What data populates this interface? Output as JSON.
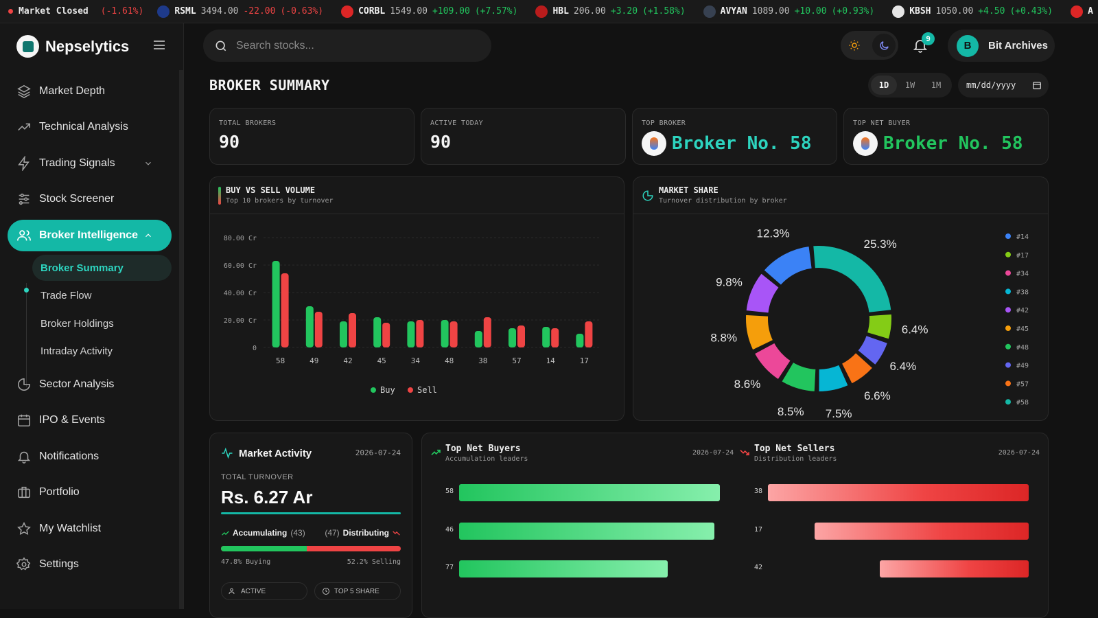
{
  "market_status": {
    "label": "Market Closed",
    "change": "(-1.61%)"
  },
  "ticker": [
    {
      "symbol": "RSML",
      "price": "3494.00",
      "change": "-22.00",
      "pct": "(-0.63%)",
      "dir": "dn",
      "logo_color": "#1e3a8a"
    },
    {
      "symbol": "CORBL",
      "price": "1549.00",
      "change": "+109.00",
      "pct": "(+7.57%)",
      "dir": "up",
      "logo_color": "#dc2626"
    },
    {
      "symbol": "HBL",
      "price": "206.00",
      "change": "+3.20",
      "pct": "(+1.58%)",
      "dir": "up",
      "logo_color": "#b91c1c"
    },
    {
      "symbol": "AVYAN",
      "price": "1089.00",
      "change": "+10.00",
      "pct": "(+0.93%)",
      "dir": "up",
      "logo_color": "#374151"
    },
    {
      "symbol": "KBSH",
      "price": "1050.00",
      "change": "+4.50",
      "pct": "(+0.43%)",
      "dir": "up",
      "logo_color": "#e5e5e5"
    },
    {
      "symbol": "A",
      "price": "",
      "change": "",
      "pct": "",
      "dir": "up",
      "logo_color": "#dc2626"
    }
  ],
  "brand": {
    "name": "Nepselytics"
  },
  "sidebar": {
    "items": [
      {
        "label": "Market Depth",
        "icon": "layers-icon"
      },
      {
        "label": "Technical Analysis",
        "icon": "trend-icon"
      },
      {
        "label": "Trading Signals",
        "icon": "zap-icon"
      },
      {
        "label": "Stock Screener",
        "icon": "sliders-icon"
      },
      {
        "label": "Broker Intelligence",
        "icon": "users-icon"
      },
      {
        "label": "Sector Analysis",
        "icon": "pie-icon"
      },
      {
        "label": "IPO & Events",
        "icon": "calendar-icon"
      },
      {
        "label": "Notifications",
        "icon": "bell-icon"
      },
      {
        "label": "Portfolio",
        "icon": "briefcase-icon"
      },
      {
        "label": "My Watchlist",
        "icon": "star-icon"
      },
      {
        "label": "Settings",
        "icon": "gear-icon"
      }
    ],
    "subitems": [
      {
        "label": "Broker Summary"
      },
      {
        "label": "Trade Flow"
      },
      {
        "label": "Broker Holdings"
      },
      {
        "label": "Intraday Activity"
      }
    ]
  },
  "search": {
    "placeholder": "Search stocks..."
  },
  "notifications": {
    "count": "9"
  },
  "user": {
    "name": "Bit Archives",
    "initial": "B"
  },
  "page": {
    "title": "BROKER SUMMARY",
    "ranges": [
      "1D",
      "1W",
      "1M"
    ],
    "date_placeholder": "mm/dd/yyyy"
  },
  "kpis": [
    {
      "label": "TOTAL BROKERS",
      "value": "90"
    },
    {
      "label": "ACTIVE TODAY",
      "value": "90"
    },
    {
      "label": "TOP BROKER",
      "value": "Broker No. 58",
      "color": "#2dd4bf"
    },
    {
      "label": "TOP NET BUYER",
      "value": "Broker No. 58",
      "color": "#22c55e"
    }
  ],
  "buy_sell": {
    "title": "BUY VS SELL VOLUME",
    "subtitle": "Top 10 brokers by turnover"
  },
  "market_share": {
    "title": "MARKET SHARE",
    "subtitle": "Turnover distribution by broker"
  },
  "chart_data": [
    {
      "type": "bar",
      "title": "BUY VS SELL VOLUME",
      "categories": [
        "58",
        "49",
        "42",
        "45",
        "34",
        "48",
        "38",
        "57",
        "14",
        "17"
      ],
      "series": [
        {
          "name": "Buy",
          "color": "#22c55e",
          "values": [
            63,
            30,
            19,
            22,
            19,
            20,
            12,
            14,
            15,
            10
          ]
        },
        {
          "name": "Sell",
          "color": "#ef4444",
          "values": [
            54,
            26,
            25,
            18,
            20,
            19,
            22,
            16,
            14,
            19
          ]
        }
      ],
      "ylim": [
        0,
        80
      ],
      "yticks": [
        "0",
        "20.00 Cr",
        "40.00 Cr",
        "60.00 Cr",
        "80.00 Cr"
      ],
      "legend": "bottom"
    },
    {
      "type": "pie",
      "title": "MARKET SHARE",
      "legend": "right",
      "slices": [
        {
          "name": "#58",
          "value": 25.3,
          "label": "25.3%",
          "color": "#14b8a6"
        },
        {
          "name": "#17",
          "value": 6.4,
          "label": "6.4%",
          "color": "#84cc16"
        },
        {
          "name": "#49",
          "value": 6.4,
          "label": "6.4%",
          "color": "#6366f1"
        },
        {
          "name": "#57",
          "value": 6.6,
          "label": "6.6%",
          "color": "#f97316"
        },
        {
          "name": "#38",
          "value": 7.5,
          "label": "7.5%",
          "color": "#06b6d4"
        },
        {
          "name": "#48",
          "value": 8.5,
          "label": "8.5%",
          "color": "#22c55e"
        },
        {
          "name": "#34",
          "value": 8.6,
          "label": "8.6%",
          "color": "#ec4899"
        },
        {
          "name": "#45",
          "value": 8.8,
          "label": "8.8%",
          "color": "#f59e0b"
        },
        {
          "name": "#42",
          "value": 9.8,
          "label": "9.8%",
          "color": "#a855f7"
        },
        {
          "name": "#14",
          "value": 12.3,
          "label": "12.3%",
          "color": "#3b82f6"
        }
      ],
      "legend_order": [
        "#14",
        "#17",
        "#34",
        "#38",
        "#42",
        "#45",
        "#48",
        "#49",
        "#57",
        "#58"
      ]
    }
  ],
  "activity": {
    "title": "Market Activity",
    "date": "2026-07-24",
    "turnover_label": "TOTAL TURNOVER",
    "turnover": "Rs. 6.27 Ar",
    "acc_label": "Accumulating",
    "acc_count": "(43)",
    "dist_count": "(47)",
    "dist_label": "Distributing",
    "buy_pct": 47.8,
    "buy_text": "47.8% Buying",
    "sell_text": "52.2% Selling",
    "active_label": "ACTIVE",
    "top5_label": "TOP 5 SHARE"
  },
  "net_buyers": {
    "title": "Top Net Buyers",
    "subtitle": "Accumulation leaders",
    "date": "2026-07-24",
    "rows": [
      {
        "broker": "58",
        "value": 100
      },
      {
        "broker": "46",
        "value": 98
      },
      {
        "broker": "77",
        "value": 80
      }
    ]
  },
  "net_sellers": {
    "title": "Top Net Sellers",
    "subtitle": "Distribution leaders",
    "date": "2026-07-24",
    "rows": [
      {
        "broker": "38",
        "value": 100
      },
      {
        "broker": "17",
        "value": 82
      },
      {
        "broker": "42",
        "value": 57
      }
    ]
  }
}
